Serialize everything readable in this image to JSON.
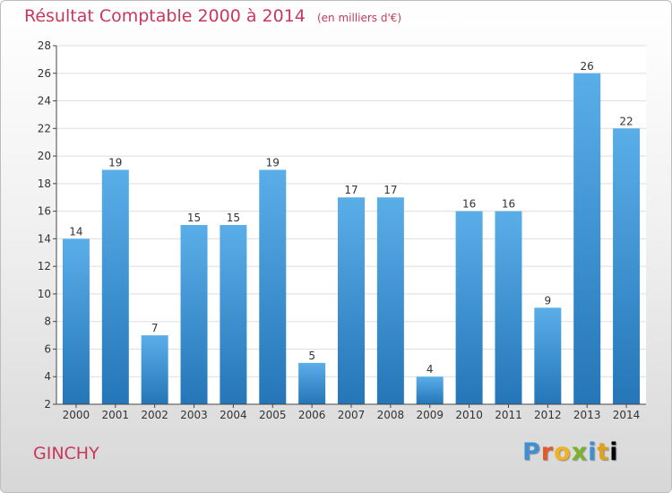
{
  "header": {
    "title": "Résultat Comptable 2000 à 2014",
    "unit": "(en milliers d'€)"
  },
  "footer": {
    "commune": "GINCHY",
    "logo_letters": [
      "P",
      "r",
      "o",
      "x",
      "i",
      "t",
      "i"
    ]
  },
  "colors": {
    "bar_top": "#5aaee8",
    "bar_bottom": "#2476b8",
    "title": "#c8385c",
    "grid": "#dddddd",
    "axis": "#444444"
  },
  "chart_data": {
    "type": "bar",
    "categories": [
      "2000",
      "2001",
      "2002",
      "2003",
      "2004",
      "2005",
      "2006",
      "2007",
      "2008",
      "2009",
      "2010",
      "2011",
      "2012",
      "2013",
      "2014"
    ],
    "values": [
      14,
      19,
      7,
      15,
      15,
      19,
      5,
      17,
      17,
      4,
      16,
      16,
      9,
      26,
      22
    ],
    "ylim": [
      2,
      28
    ],
    "yticks": [
      2,
      4,
      6,
      8,
      10,
      12,
      14,
      16,
      18,
      20,
      22,
      24,
      26,
      28
    ],
    "grid": "horizontal",
    "data_labels": true
  }
}
